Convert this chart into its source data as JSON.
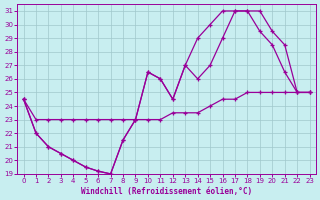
{
  "xlabel": "Windchill (Refroidissement éolien,°C)",
  "background_color": "#c8eef0",
  "line_color": "#990099",
  "xlim": [
    -0.5,
    23.5
  ],
  "ylim": [
    19,
    31.5
  ],
  "xticks": [
    0,
    1,
    2,
    3,
    4,
    5,
    6,
    7,
    8,
    9,
    10,
    11,
    12,
    13,
    14,
    15,
    16,
    17,
    18,
    19,
    20,
    21,
    22,
    23
  ],
  "yticks": [
    19,
    20,
    21,
    22,
    23,
    24,
    25,
    26,
    27,
    28,
    29,
    30,
    31
  ],
  "line1_x": [
    0,
    1,
    2,
    3,
    4,
    5,
    6,
    7,
    8,
    9,
    10,
    11,
    12,
    13,
    14,
    15,
    16,
    17,
    18,
    19,
    20,
    21,
    22,
    23
  ],
  "line1_y": [
    24.5,
    23.0,
    23.0,
    23.0,
    23.0,
    23.0,
    23.0,
    23.0,
    23.0,
    23.0,
    23.0,
    23.0,
    23.5,
    23.5,
    23.5,
    24.0,
    24.5,
    24.5,
    25.0,
    25.0,
    25.0,
    25.0,
    25.0,
    25.0
  ],
  "line2_x": [
    0,
    1,
    2,
    3,
    4,
    5,
    6,
    7,
    8,
    9,
    10,
    11,
    12,
    13,
    14,
    15,
    16,
    17,
    18,
    19,
    20,
    21,
    22,
    23
  ],
  "line2_y": [
    24.5,
    22.0,
    21.0,
    20.5,
    20.0,
    19.5,
    19.2,
    19.0,
    21.5,
    23.0,
    26.5,
    26.0,
    24.5,
    27.0,
    29.0,
    30.0,
    31.0,
    31.0,
    31.0,
    31.0,
    29.5,
    28.5,
    25.0,
    25.0
  ],
  "line3_x": [
    0,
    1,
    2,
    3,
    4,
    5,
    6,
    7,
    8,
    9,
    10,
    11,
    12,
    13,
    14,
    15,
    16,
    17,
    18,
    19,
    20,
    21,
    22,
    23
  ],
  "line3_y": [
    24.5,
    22.0,
    21.0,
    20.5,
    20.0,
    19.5,
    19.2,
    19.0,
    21.5,
    23.0,
    26.5,
    26.0,
    24.5,
    27.0,
    26.0,
    27.0,
    29.0,
    31.0,
    31.0,
    29.5,
    28.5,
    26.5,
    25.0,
    25.0
  ],
  "grid_color": "#a0c8cc",
  "marker": "+"
}
